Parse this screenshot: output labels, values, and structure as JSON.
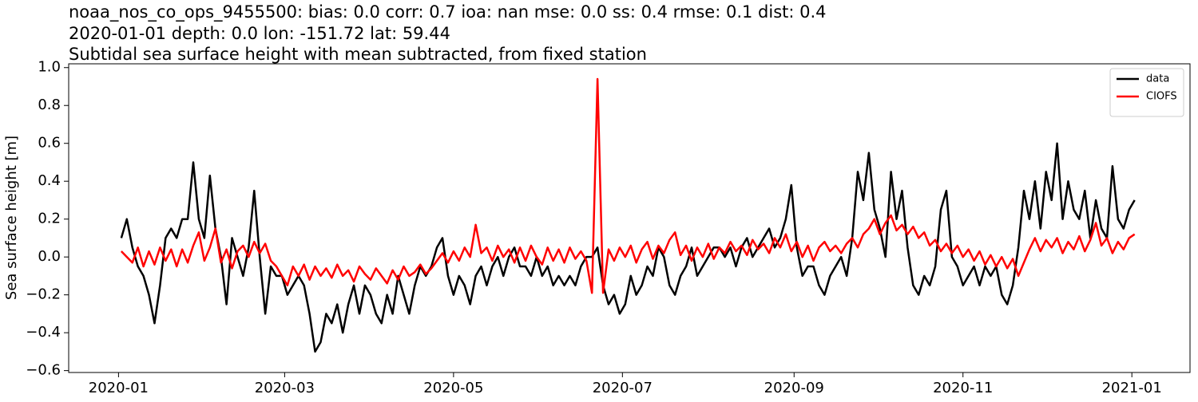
{
  "chart_data": {
    "type": "line",
    "title_lines": [
      "noaa_nos_co_ops_9455500: bias: 0.0  corr: 0.7  ioa: nan  mse: 0.0  ss: 0.4  rmse: 0.1  dist: 0.4",
      "2020-01-01 depth: 0.0 lon: -151.72 lat: 59.44",
      "Subtidal sea surface height with mean subtracted, from fixed station"
    ],
    "ylabel": "Sea surface height [m]",
    "legend": "upper right",
    "xlim": [
      -18,
      387
    ],
    "ylim": [
      -0.61,
      1.02
    ],
    "xticks": [
      {
        "value": 0,
        "label": "2020-01"
      },
      {
        "value": 60,
        "label": "2020-03"
      },
      {
        "value": 121,
        "label": "2020-05"
      },
      {
        "value": 182,
        "label": "2020-07"
      },
      {
        "value": 244,
        "label": "2020-09"
      },
      {
        "value": 305,
        "label": "2020-11"
      },
      {
        "value": 366,
        "label": "2021-01"
      }
    ],
    "yticks": [
      {
        "value": -0.6,
        "label": "−0.6"
      },
      {
        "value": -0.4,
        "label": "−0.4"
      },
      {
        "value": -0.2,
        "label": "−0.2"
      },
      {
        "value": 0,
        "label": "0.0"
      },
      {
        "value": 0.2,
        "label": "0.2"
      },
      {
        "value": 0.4,
        "label": "0.4"
      },
      {
        "value": 0.6,
        "label": "0.6"
      },
      {
        "value": 0.8,
        "label": "0.8"
      },
      {
        "value": 1.0,
        "label": "1.0"
      }
    ],
    "x": [
      1,
      3,
      5,
      7,
      9,
      11,
      13,
      15,
      17,
      19,
      21,
      23,
      25,
      27,
      29,
      31,
      33,
      35,
      37,
      39,
      41,
      43,
      45,
      47,
      49,
      51,
      53,
      55,
      57,
      59,
      61,
      63,
      65,
      67,
      69,
      71,
      73,
      75,
      77,
      79,
      81,
      83,
      85,
      87,
      89,
      91,
      93,
      95,
      97,
      99,
      101,
      103,
      105,
      107,
      109,
      111,
      113,
      115,
      117,
      119,
      121,
      123,
      125,
      127,
      129,
      131,
      133,
      135,
      137,
      139,
      141,
      143,
      145,
      147,
      149,
      151,
      153,
      155,
      157,
      159,
      161,
      163,
      165,
      167,
      169,
      171,
      173,
      175,
      177,
      179,
      181,
      183,
      185,
      187,
      189,
      191,
      193,
      195,
      197,
      199,
      201,
      203,
      205,
      207,
      209,
      211,
      213,
      215,
      217,
      219,
      221,
      223,
      225,
      227,
      229,
      231,
      233,
      235,
      237,
      239,
      241,
      243,
      245,
      247,
      249,
      251,
      253,
      255,
      257,
      259,
      261,
      263,
      265,
      267,
      269,
      271,
      273,
      275,
      277,
      279,
      281,
      283,
      285,
      287,
      289,
      291,
      293,
      295,
      297,
      299,
      301,
      303,
      305,
      307,
      309,
      311,
      313,
      315,
      317,
      319,
      321,
      323,
      325,
      327,
      329,
      331,
      333,
      335,
      337,
      339,
      341,
      343,
      345,
      347,
      349,
      351,
      353,
      355,
      357,
      359,
      361,
      363,
      365,
      367
    ],
    "series": [
      {
        "name": "data",
        "color": "#000000",
        "values": [
          0.1,
          0.2,
          0.05,
          -0.05,
          -0.1,
          -0.2,
          -0.35,
          -0.15,
          0.1,
          0.15,
          0.1,
          0.2,
          0.2,
          0.5,
          0.2,
          0.1,
          0.43,
          0.15,
          0.0,
          -0.25,
          0.1,
          0.0,
          -0.1,
          0.05,
          0.35,
          0.0,
          -0.3,
          -0.05,
          -0.1,
          -0.1,
          -0.2,
          -0.15,
          -0.1,
          -0.15,
          -0.3,
          -0.5,
          -0.45,
          -0.3,
          -0.35,
          -0.25,
          -0.4,
          -0.25,
          -0.15,
          -0.3,
          -0.15,
          -0.2,
          -0.3,
          -0.35,
          -0.2,
          -0.3,
          -0.1,
          -0.2,
          -0.3,
          -0.15,
          -0.05,
          -0.1,
          -0.05,
          0.05,
          0.1,
          -0.1,
          -0.2,
          -0.1,
          -0.15,
          -0.25,
          -0.1,
          -0.05,
          -0.15,
          -0.05,
          0.0,
          -0.1,
          0.0,
          0.05,
          -0.05,
          -0.05,
          -0.1,
          0.0,
          -0.1,
          -0.05,
          -0.15,
          -0.1,
          -0.15,
          -0.1,
          -0.15,
          -0.05,
          0.0,
          0.0,
          0.05,
          -0.15,
          -0.25,
          -0.2,
          -0.3,
          -0.25,
          -0.1,
          -0.2,
          -0.15,
          -0.05,
          -0.1,
          0.05,
          0.0,
          -0.15,
          -0.2,
          -0.1,
          -0.05,
          0.05,
          -0.1,
          -0.05,
          0.0,
          0.05,
          0.05,
          0.0,
          0.05,
          -0.05,
          0.05,
          0.1,
          0.0,
          0.05,
          0.1,
          0.15,
          0.05,
          0.1,
          0.2,
          0.38,
          0.05,
          -0.1,
          -0.05,
          -0.05,
          -0.15,
          -0.2,
          -0.1,
          -0.05,
          0.0,
          -0.1,
          0.1,
          0.45,
          0.3,
          0.55,
          0.25,
          0.15,
          0.0,
          0.45,
          0.2,
          0.35,
          0.05,
          -0.15,
          -0.2,
          -0.1,
          -0.15,
          -0.05,
          0.25,
          0.35,
          0.0,
          -0.05,
          -0.15,
          -0.1,
          -0.05,
          -0.15,
          -0.05,
          -0.1,
          -0.05,
          -0.2,
          -0.25,
          -0.15,
          0.05,
          0.35,
          0.2,
          0.4,
          0.15,
          0.45,
          0.3,
          0.6,
          0.2,
          0.4,
          0.25,
          0.2,
          0.35,
          0.1,
          0.3,
          0.15,
          0.1,
          0.48,
          0.2,
          0.15,
          0.25,
          0.3
        ]
      },
      {
        "name": "CIOFS",
        "color": "#ff0000",
        "values": [
          0.03,
          0.0,
          -0.03,
          0.05,
          -0.05,
          0.03,
          -0.04,
          0.05,
          -0.02,
          0.04,
          -0.05,
          0.04,
          -0.03,
          0.06,
          0.13,
          -0.02,
          0.05,
          0.15,
          -0.03,
          0.04,
          -0.06,
          0.03,
          0.06,
          0.0,
          0.08,
          0.02,
          0.07,
          -0.02,
          -0.05,
          -0.1,
          -0.15,
          -0.05,
          -0.1,
          -0.04,
          -0.12,
          -0.05,
          -0.1,
          -0.06,
          -0.11,
          -0.04,
          -0.1,
          -0.07,
          -0.13,
          -0.05,
          -0.09,
          -0.12,
          -0.06,
          -0.1,
          -0.14,
          -0.07,
          -0.12,
          -0.05,
          -0.1,
          -0.08,
          -0.04,
          -0.09,
          -0.06,
          -0.02,
          0.02,
          -0.03,
          0.03,
          -0.02,
          0.05,
          0.0,
          0.17,
          0.02,
          0.05,
          -0.02,
          0.06,
          0.0,
          0.04,
          -0.03,
          0.05,
          -0.02,
          0.06,
          0.0,
          -0.04,
          0.05,
          -0.02,
          0.04,
          -0.03,
          0.05,
          -0.01,
          0.03,
          -0.02,
          -0.19,
          0.94,
          -0.19,
          0.04,
          -0.02,
          0.05,
          0.0,
          0.06,
          -0.03,
          0.04,
          0.08,
          -0.01,
          0.06,
          0.02,
          0.09,
          0.13,
          0.01,
          0.06,
          -0.02,
          0.05,
          0.0,
          0.07,
          -0.01,
          0.05,
          0.02,
          0.08,
          0.03,
          0.06,
          0.01,
          0.09,
          0.04,
          0.07,
          0.02,
          0.1,
          0.05,
          0.12,
          0.03,
          0.08,
          0.0,
          0.06,
          -0.02,
          0.05,
          0.08,
          0.03,
          0.06,
          0.02,
          0.07,
          0.1,
          0.05,
          0.12,
          0.15,
          0.2,
          0.12,
          0.18,
          0.22,
          0.14,
          0.17,
          0.12,
          0.16,
          0.1,
          0.13,
          0.06,
          0.09,
          0.03,
          0.07,
          0.02,
          0.06,
          0.0,
          0.04,
          -0.02,
          0.03,
          -0.04,
          0.01,
          -0.05,
          0.0,
          -0.06,
          -0.01,
          -0.1,
          -0.03,
          0.04,
          0.1,
          0.03,
          0.09,
          0.05,
          0.1,
          0.02,
          0.08,
          0.04,
          0.11,
          0.03,
          0.09,
          0.18,
          0.06,
          0.1,
          0.02,
          0.08,
          0.04,
          0.1,
          0.12
        ]
      }
    ]
  }
}
